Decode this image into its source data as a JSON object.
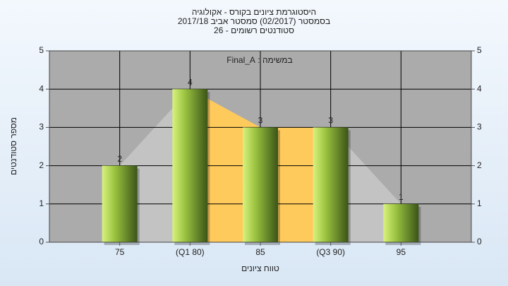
{
  "chart_data": {
    "type": "bar",
    "title": [
      "היסטוגרמת ציונים בקורס - אקולוגיה",
      "בסמסטר  (02/2017)  סמסטר אביב 2017/18",
      "סטודנטים רשומים - 26"
    ],
    "annotation": "במשימה : Final_A",
    "x_label": "טווח ציונים",
    "y_label": "מספר סטודנטים",
    "categories": [
      "75",
      "(Q1 80)",
      "85",
      "(Q3 90)",
      "95"
    ],
    "values": [
      2,
      4,
      3,
      3,
      1
    ],
    "color": "#9cc441",
    "area_color": "#c3c3c3",
    "quartile_color": "#ffca5c",
    "ylim": [
      0,
      5
    ],
    "yticks": [
      0,
      1,
      2,
      3,
      4,
      5
    ],
    "y2lim": [
      0,
      5
    ],
    "y2ticks": [
      0,
      1,
      2,
      3,
      4,
      5
    ],
    "grid": true
  }
}
